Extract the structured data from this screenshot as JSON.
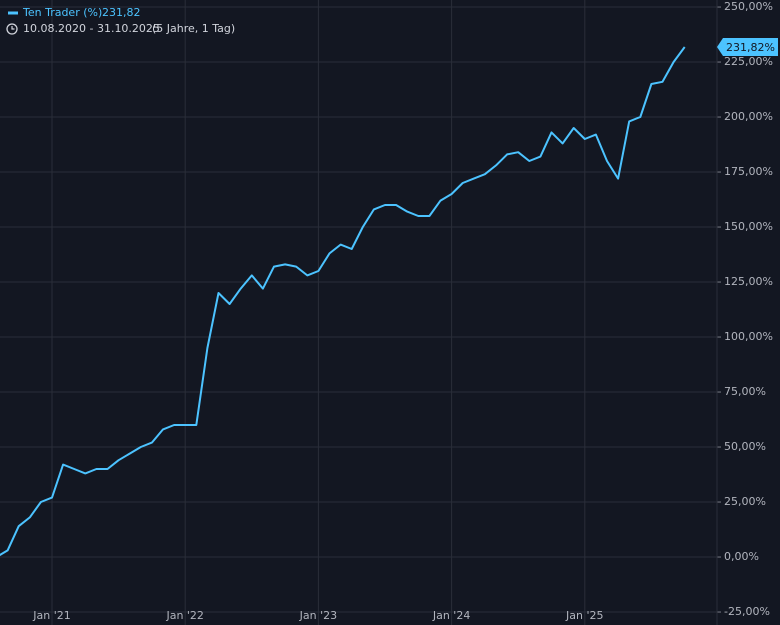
{
  "chart_data": {
    "type": "line",
    "legend_title": "Ten Trader (%)",
    "legend_value": "231,82",
    "date_range": "10.08.2020 - 31.10.2025",
    "period": "(5 Jahre, 1 Tag)",
    "last_value_label": "231,82%",
    "x": [
      "2020-08",
      "2020-09",
      "2020-10",
      "2020-11",
      "2020-12",
      "2021-01",
      "2021-02",
      "2021-03",
      "2021-04",
      "2021-05",
      "2021-06",
      "2021-07",
      "2021-08",
      "2021-09",
      "2021-10",
      "2021-11",
      "2021-12",
      "2022-01",
      "2022-02",
      "2022-03",
      "2022-04",
      "2022-05",
      "2022-06",
      "2022-07",
      "2022-08",
      "2022-09",
      "2022-10",
      "2022-11",
      "2022-12",
      "2023-01",
      "2023-02",
      "2023-03",
      "2023-04",
      "2023-05",
      "2023-06",
      "2023-07",
      "2023-08",
      "2023-09",
      "2023-10",
      "2023-11",
      "2023-12",
      "2024-01",
      "2024-02",
      "2024-03",
      "2024-04",
      "2024-05",
      "2024-06",
      "2024-07",
      "2024-08",
      "2024-09",
      "2024-10",
      "2024-11",
      "2024-12",
      "2025-01",
      "2025-02",
      "2025-03",
      "2025-04",
      "2025-05",
      "2025-06",
      "2025-07",
      "2025-08",
      "2025-09",
      "2025-10"
    ],
    "series": [
      {
        "name": "Ten Trader (%)",
        "color": "#4cc3ff",
        "values": [
          0,
          3,
          14,
          18,
          25,
          27,
          42,
          40,
          38,
          40,
          40,
          44,
          47,
          50,
          52,
          58,
          60,
          60,
          60,
          95,
          120,
          115,
          122,
          128,
          122,
          132,
          133,
          132,
          128,
          130,
          138,
          142,
          140,
          150,
          158,
          160,
          160,
          157,
          155,
          155,
          162,
          165,
          170,
          172,
          174,
          178,
          183,
          184,
          180,
          182,
          193,
          188,
          195,
          190,
          192,
          180,
          172,
          198,
          200,
          215,
          216,
          225,
          231.82
        ]
      }
    ],
    "ylim": [
      -30.9,
      253.2
    ],
    "yticks": [
      {
        "value": -25,
        "label": "-25,00%"
      },
      {
        "value": 0,
        "label": "0,00%"
      },
      {
        "value": 25,
        "label": "25,00%"
      },
      {
        "value": 50,
        "label": "50,00%"
      },
      {
        "value": 75,
        "label": "75,00%"
      },
      {
        "value": 100,
        "label": "100,00%"
      },
      {
        "value": 125,
        "label": "125,00%"
      },
      {
        "value": 150,
        "label": "150,00%"
      },
      {
        "value": 175,
        "label": "175,00%"
      },
      {
        "value": 200,
        "label": "200,00%"
      },
      {
        "value": 225,
        "label": "225,00%"
      },
      {
        "value": 250,
        "label": "250,00%"
      }
    ],
    "xticks": [
      {
        "value": "2021-01",
        "label": "Jan '21"
      },
      {
        "value": "2022-01",
        "label": "Jan '22"
      },
      {
        "value": "2023-01",
        "label": "Jan '23"
      },
      {
        "value": "2024-01",
        "label": "Jan '24"
      },
      {
        "value": "2025-01",
        "label": "Jan '25"
      }
    ],
    "grid": true
  }
}
